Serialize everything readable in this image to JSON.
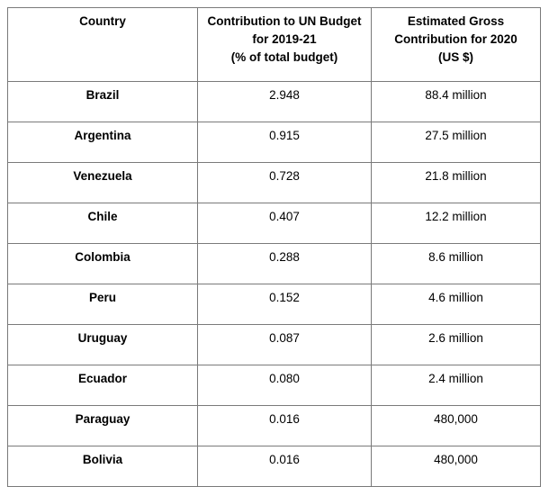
{
  "table": {
    "headers": [
      [
        "Country"
      ],
      [
        "Contribution to UN Budget",
        "for 2019-21",
        "(% of total budget)"
      ],
      [
        "Estimated Gross",
        "Contribution for 2020",
        "(US $)"
      ]
    ],
    "rows": [
      {
        "country": "Brazil",
        "percent": "2.948",
        "amount": "88.4 million"
      },
      {
        "country": "Argentina",
        "percent": "0.915",
        "amount": "27.5 million"
      },
      {
        "country": "Venezuela",
        "percent": "0.728",
        "amount": "21.8 million"
      },
      {
        "country": "Chile",
        "percent": "0.407",
        "amount": "12.2 million"
      },
      {
        "country": "Colombia",
        "percent": "0.288",
        "amount": "8.6 million"
      },
      {
        "country": "Peru",
        "percent": "0.152",
        "amount": "4.6 million"
      },
      {
        "country": "Uruguay",
        "percent": "0.087",
        "amount": "2.6 million"
      },
      {
        "country": "Ecuador",
        "percent": "0.080",
        "amount": "2.4 million"
      },
      {
        "country": "Paraguay",
        "percent": "0.016",
        "amount": "480,000"
      },
      {
        "country": "Bolivia",
        "percent": "0.016",
        "amount": "480,000"
      }
    ]
  }
}
